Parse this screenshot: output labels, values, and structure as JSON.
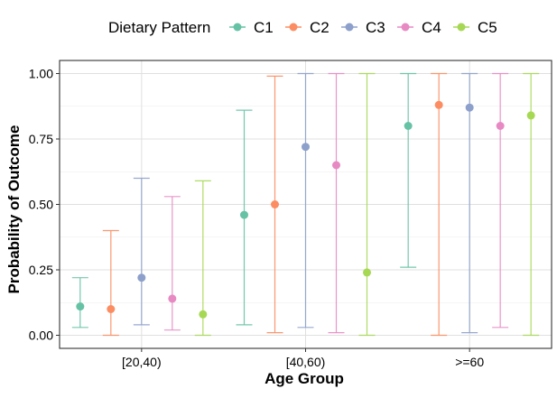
{
  "chart_data": {
    "type": "scatter",
    "subtype": "point-with-errorbars",
    "xlabel": "Age Group",
    "ylabel": "Probability of Outcome",
    "categories": [
      "[20,40)",
      "[40,60)",
      ">=60"
    ],
    "ylim": [
      -0.05,
      1.05
    ],
    "yticks": [
      0,
      0.25,
      0.5,
      0.75,
      1
    ],
    "ytick_labels": [
      "0.00",
      "0.25",
      "0.50",
      "0.75",
      "1.00"
    ],
    "grid": true,
    "legend": {
      "title": "Dietary Pattern",
      "position": "top"
    },
    "series": [
      {
        "name": "C1",
        "color": "#66C2A5",
        "values": [
          0.11,
          0.46,
          0.8
        ],
        "lower": [
          0.03,
          0.04,
          0.26
        ],
        "upper": [
          0.22,
          0.86,
          1.0
        ]
      },
      {
        "name": "C2",
        "color": "#FC8D62",
        "values": [
          0.1,
          0.5,
          0.88
        ],
        "lower": [
          0.0,
          0.01,
          0.0
        ],
        "upper": [
          0.4,
          0.99,
          1.0
        ]
      },
      {
        "name": "C3",
        "color": "#8DA0CB",
        "values": [
          0.22,
          0.72,
          0.87
        ],
        "lower": [
          0.04,
          0.03,
          0.01
        ],
        "upper": [
          0.6,
          1.0,
          1.0
        ]
      },
      {
        "name": "C4",
        "color": "#E78AC3",
        "values": [
          0.14,
          0.65,
          0.8
        ],
        "lower": [
          0.02,
          0.01,
          0.03
        ],
        "upper": [
          0.53,
          1.0,
          1.0
        ]
      },
      {
        "name": "C5",
        "color": "#A6D854",
        "values": [
          0.08,
          0.24,
          0.84
        ],
        "lower": [
          0.0,
          0.0,
          0.0
        ],
        "upper": [
          0.59,
          1.0,
          1.0
        ]
      }
    ]
  }
}
